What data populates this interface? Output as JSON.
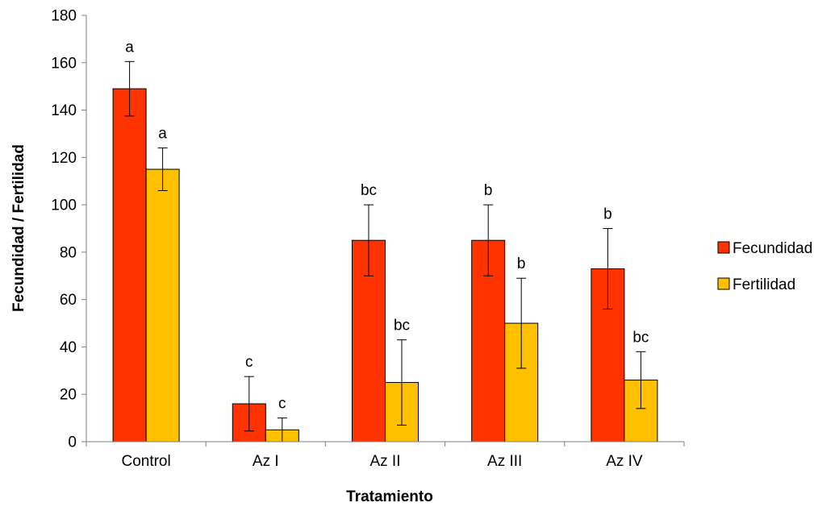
{
  "chart_data": {
    "type": "bar",
    "title": "",
    "xlabel": "Tratamiento",
    "ylabel": "Fecundidad / Fertilidad",
    "ylim": [
      0,
      180
    ],
    "yticks": [
      0,
      20,
      40,
      60,
      80,
      100,
      120,
      140,
      160,
      180
    ],
    "categories": [
      "Control",
      "Az I",
      "Az II",
      "Az III",
      "Az IV"
    ],
    "legend_position": "right",
    "grid": false,
    "series": [
      {
        "name": "Fecundidad",
        "color": "#FF3300",
        "values": [
          149,
          16,
          85,
          85,
          73
        ],
        "error": [
          11.5,
          11.5,
          15,
          15,
          17
        ],
        "letters": [
          "a",
          "c",
          "bc",
          "b",
          "b"
        ]
      },
      {
        "name": "Fertilidad",
        "color": "#FFC000",
        "values": [
          115,
          5,
          25,
          50,
          26
        ],
        "error": [
          9,
          5,
          18,
          19,
          12
        ],
        "letters": [
          "a",
          "c",
          "bc",
          "b",
          "bc"
        ]
      }
    ]
  }
}
